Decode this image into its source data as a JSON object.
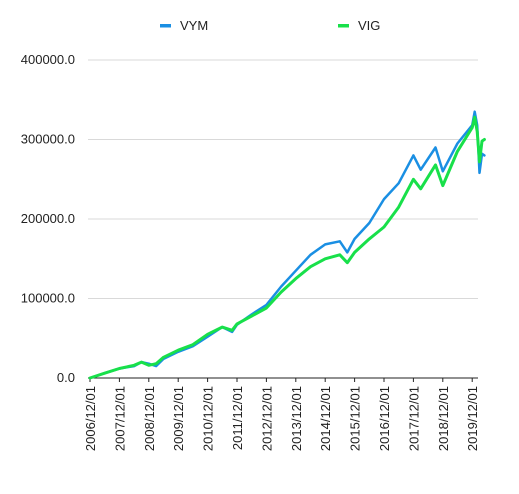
{
  "chart_data": {
    "type": "line",
    "x_tick_labels": [
      "2006/12/01",
      "2007/12/01",
      "2008/12/01",
      "2009/12/01",
      "2010/12/01",
      "2011/12/01",
      "2012/12/01",
      "2013/12/01",
      "2014/12/01",
      "2015/12/01",
      "2016/12/01",
      "2017/12/01",
      "2018/12/01",
      "2019/12/01"
    ],
    "y_tick_labels": [
      "0.0",
      "100000.0",
      "200000.0",
      "300000.0",
      "400000.0"
    ],
    "ylim": [
      0,
      400000
    ],
    "grid": true,
    "legend_position": "top",
    "series": [
      {
        "name": "VYM",
        "color": "#1a8fe3",
        "points": [
          [
            "2006/12/01",
            0
          ],
          [
            "2007/06/01",
            6000
          ],
          [
            "2007/12/01",
            12000
          ],
          [
            "2008/06/01",
            15000
          ],
          [
            "2008/09/01",
            20000
          ],
          [
            "2008/12/01",
            18000
          ],
          [
            "2009/03/01",
            15000
          ],
          [
            "2009/06/01",
            24000
          ],
          [
            "2009/12/01",
            33000
          ],
          [
            "2010/06/01",
            40000
          ],
          [
            "2010/12/01",
            52000
          ],
          [
            "2011/06/01",
            64000
          ],
          [
            "2011/10/01",
            58000
          ],
          [
            "2011/12/01",
            67000
          ],
          [
            "2012/06/01",
            80000
          ],
          [
            "2012/12/01",
            92000
          ],
          [
            "2013/06/01",
            115000
          ],
          [
            "2013/12/01",
            135000
          ],
          [
            "2014/06/01",
            155000
          ],
          [
            "2014/12/01",
            168000
          ],
          [
            "2015/06/01",
            172000
          ],
          [
            "2015/09/01",
            158000
          ],
          [
            "2015/12/01",
            175000
          ],
          [
            "2016/06/01",
            195000
          ],
          [
            "2016/12/01",
            225000
          ],
          [
            "2017/06/01",
            245000
          ],
          [
            "2017/12/01",
            280000
          ],
          [
            "2018/03/01",
            262000
          ],
          [
            "2018/09/01",
            290000
          ],
          [
            "2018/12/01",
            260000
          ],
          [
            "2019/06/01",
            295000
          ],
          [
            "2019/12/01",
            318000
          ],
          [
            "2020/01/01",
            335000
          ],
          [
            "2020/02/01",
            318000
          ],
          [
            "2020/03/01",
            258000
          ],
          [
            "2020/04/01",
            282000
          ],
          [
            "2020/05/01",
            280000
          ]
        ]
      },
      {
        "name": "VIG",
        "color": "#18e04a",
        "points": [
          [
            "2006/12/01",
            0
          ],
          [
            "2007/06/01",
            6000
          ],
          [
            "2007/12/01",
            12000
          ],
          [
            "2008/06/01",
            16000
          ],
          [
            "2008/09/01",
            20000
          ],
          [
            "2008/12/01",
            16000
          ],
          [
            "2009/03/01",
            18000
          ],
          [
            "2009/06/01",
            26000
          ],
          [
            "2009/12/01",
            35000
          ],
          [
            "2010/06/01",
            42000
          ],
          [
            "2010/12/01",
            55000
          ],
          [
            "2011/06/01",
            64000
          ],
          [
            "2011/10/01",
            60000
          ],
          [
            "2011/12/01",
            68000
          ],
          [
            "2012/06/01",
            78000
          ],
          [
            "2012/12/01",
            88000
          ],
          [
            "2013/06/01",
            108000
          ],
          [
            "2013/12/01",
            125000
          ],
          [
            "2014/06/01",
            140000
          ],
          [
            "2014/12/01",
            150000
          ],
          [
            "2015/06/01",
            155000
          ],
          [
            "2015/09/01",
            145000
          ],
          [
            "2015/12/01",
            158000
          ],
          [
            "2016/06/01",
            175000
          ],
          [
            "2016/12/01",
            190000
          ],
          [
            "2017/06/01",
            215000
          ],
          [
            "2017/12/01",
            250000
          ],
          [
            "2018/03/01",
            238000
          ],
          [
            "2018/09/01",
            268000
          ],
          [
            "2018/12/01",
            242000
          ],
          [
            "2019/06/01",
            285000
          ],
          [
            "2019/12/01",
            315000
          ],
          [
            "2020/01/01",
            328000
          ],
          [
            "2020/02/01",
            310000
          ],
          [
            "2020/03/01",
            272000
          ],
          [
            "2020/04/01",
            298000
          ],
          [
            "2020/05/01",
            300000
          ]
        ]
      }
    ]
  }
}
